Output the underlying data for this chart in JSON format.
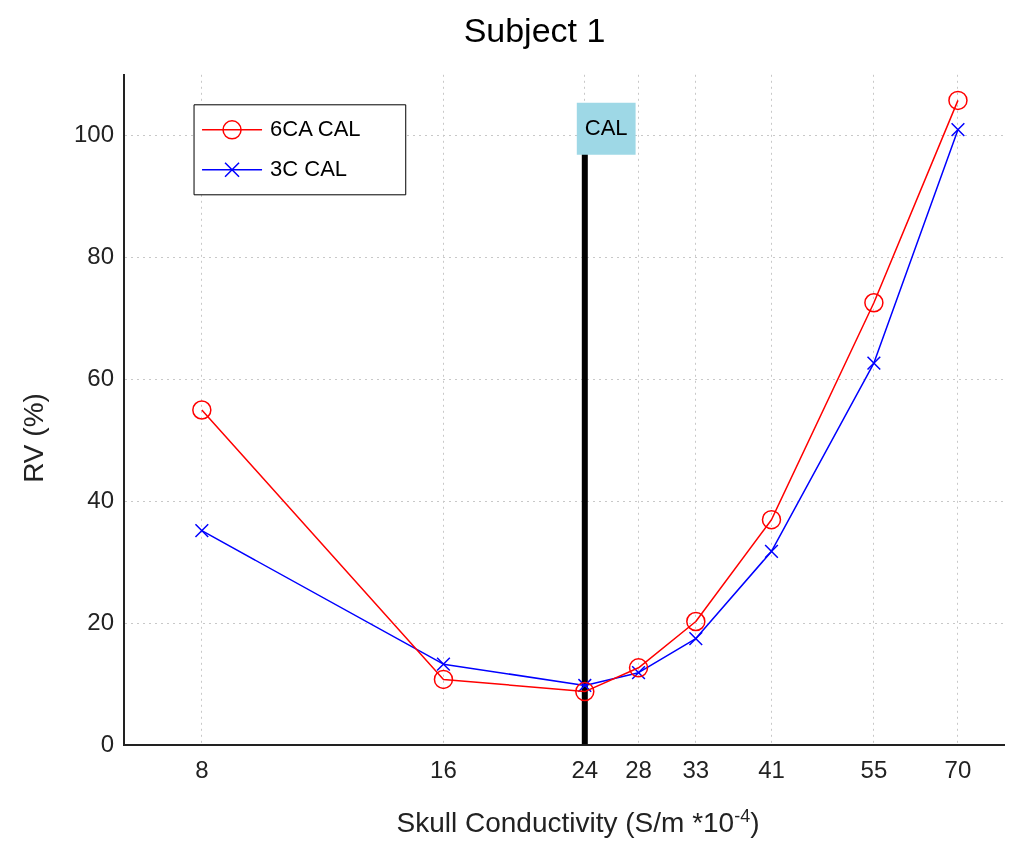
{
  "chart_data": {
    "type": "line",
    "title": "Subject 1",
    "xlabel": "Skull Conductivity (S/m *10$^{-4}$)",
    "ylabel": "RV (%)",
    "x": [
      8,
      16,
      24,
      28,
      33,
      41,
      55,
      70
    ],
    "series": [
      {
        "name": "6CA CAL",
        "color": "#ff0000",
        "marker": "circle",
        "values": [
          55,
          10.8,
          8.8,
          12.7,
          20.3,
          37,
          72.6,
          105.8
        ]
      },
      {
        "name": "3C CAL",
        "color": "#0000ff",
        "marker": "cross",
        "values": [
          35.2,
          13.3,
          9.8,
          11.9,
          17.5,
          31.8,
          62.7,
          101
        ]
      }
    ],
    "log": "x",
    "xlim": [
      6.4,
      80
    ],
    "xticks": [
      8,
      16,
      24,
      28,
      33,
      41,
      55,
      70
    ],
    "ylim": [
      0,
      110
    ],
    "yticks": [
      0,
      20,
      40,
      60,
      80,
      100
    ],
    "ref_lines": [
      {
        "axis": "x",
        "value": 24,
        "label": "CAL",
        "color": "#000000"
      }
    ],
    "grid": true,
    "legend": "top left",
    "line_style": "solid"
  }
}
